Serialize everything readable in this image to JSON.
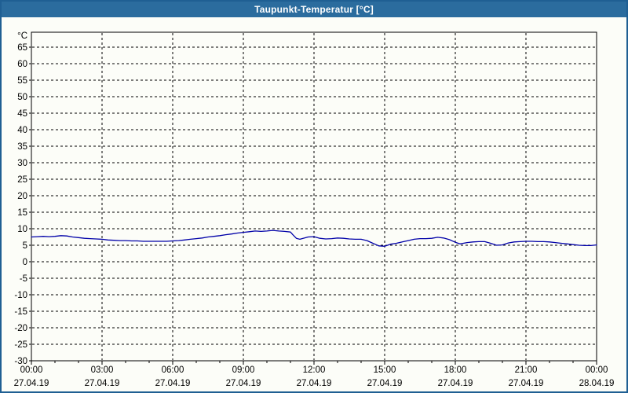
{
  "window": {
    "title": "Taupunkt-Temperatur [°C]"
  },
  "colors": {
    "titlebar_bg": "#2b6c9e",
    "titlebar_text": "#ffffff",
    "window_border": "#1f5f93",
    "background": "#fcfdf8",
    "plot_border": "#000000",
    "grid": "#000000",
    "tick_text": "#000000",
    "series_line": "#0000a8"
  },
  "chart_data": {
    "type": "line",
    "title": "Taupunkt-Temperatur [°C]",
    "ylabel": "°C",
    "unit_label": "°C",
    "ylim": [
      -30,
      65
    ],
    "y_tick_step": 5,
    "y_tick_labels": [
      "65",
      "60",
      "55",
      "50",
      "45",
      "40",
      "35",
      "30",
      "25",
      "20",
      "15",
      "10",
      "5",
      "0",
      "-5",
      "-10",
      "-15",
      "-20",
      "-25",
      "-30"
    ],
    "grid": "dashed",
    "legend_position": "none",
    "x_ticks": [
      {
        "time": "00:00",
        "date": "27.04.19"
      },
      {
        "time": "03:00",
        "date": "27.04.19"
      },
      {
        "time": "06:00",
        "date": "27.04.19"
      },
      {
        "time": "09:00",
        "date": "27.04.19"
      },
      {
        "time": "12:00",
        "date": "27.04.19"
      },
      {
        "time": "15:00",
        "date": "27.04.19"
      },
      {
        "time": "18:00",
        "date": "27.04.19"
      },
      {
        "time": "21:00",
        "date": "27.04.19"
      },
      {
        "time": "00:00",
        "date": "28.04.19"
      }
    ],
    "x_minor_tick_hours": 1,
    "series": [
      {
        "name": "Taupunkt-Temperatur",
        "color": "#0000a8",
        "points": [
          [
            0,
            7.5
          ],
          [
            0.25,
            7.6
          ],
          [
            0.5,
            7.7
          ],
          [
            0.75,
            7.6
          ],
          [
            1,
            7.7
          ],
          [
            1.25,
            7.9
          ],
          [
            1.5,
            7.8
          ],
          [
            1.75,
            7.5
          ],
          [
            2,
            7.3
          ],
          [
            2.25,
            7.1
          ],
          [
            2.5,
            7.0
          ],
          [
            2.75,
            6.9
          ],
          [
            3,
            6.8
          ],
          [
            3.25,
            6.6
          ],
          [
            3.5,
            6.5
          ],
          [
            3.75,
            6.4
          ],
          [
            4,
            6.4
          ],
          [
            4.25,
            6.3
          ],
          [
            4.5,
            6.3
          ],
          [
            4.75,
            6.2
          ],
          [
            5,
            6.2
          ],
          [
            5.25,
            6.2
          ],
          [
            5.5,
            6.2
          ],
          [
            5.75,
            6.2
          ],
          [
            6,
            6.3
          ],
          [
            6.25,
            6.4
          ],
          [
            6.5,
            6.6
          ],
          [
            6.75,
            6.8
          ],
          [
            7,
            7.0
          ],
          [
            7.25,
            7.2
          ],
          [
            7.5,
            7.5
          ],
          [
            7.75,
            7.7
          ],
          [
            8,
            7.9
          ],
          [
            8.25,
            8.2
          ],
          [
            8.5,
            8.4
          ],
          [
            8.75,
            8.7
          ],
          [
            9,
            8.9
          ],
          [
            9.25,
            9.1
          ],
          [
            9.5,
            9.3
          ],
          [
            9.75,
            9.2
          ],
          [
            10,
            9.3
          ],
          [
            10.25,
            9.5
          ],
          [
            10.5,
            9.3
          ],
          [
            10.75,
            9.2
          ],
          [
            11,
            9.0
          ],
          [
            11.1,
            8.2
          ],
          [
            11.25,
            7.1
          ],
          [
            11.4,
            6.8
          ],
          [
            11.6,
            7.2
          ],
          [
            11.75,
            7.5
          ],
          [
            12,
            7.6
          ],
          [
            12.25,
            7.1
          ],
          [
            12.5,
            6.9
          ],
          [
            12.75,
            7.0
          ],
          [
            13,
            7.2
          ],
          [
            13.25,
            7.1
          ],
          [
            13.5,
            6.9
          ],
          [
            13.75,
            6.8
          ],
          [
            14,
            6.8
          ],
          [
            14.25,
            6.4
          ],
          [
            14.5,
            5.6
          ],
          [
            14.75,
            4.8
          ],
          [
            15,
            4.7
          ],
          [
            15.25,
            5.3
          ],
          [
            15.5,
            5.6
          ],
          [
            15.75,
            6.0
          ],
          [
            16,
            6.4
          ],
          [
            16.25,
            6.8
          ],
          [
            16.5,
            7.0
          ],
          [
            16.75,
            7.0
          ],
          [
            17,
            7.1
          ],
          [
            17.25,
            7.4
          ],
          [
            17.5,
            7.2
          ],
          [
            17.75,
            6.7
          ],
          [
            18,
            5.9
          ],
          [
            18.2,
            5.4
          ],
          [
            18.5,
            5.8
          ],
          [
            18.75,
            6.0
          ],
          [
            19,
            6.1
          ],
          [
            19.25,
            6.1
          ],
          [
            19.5,
            5.6
          ],
          [
            19.75,
            5.0
          ],
          [
            20,
            5.1
          ],
          [
            20.25,
            5.7
          ],
          [
            20.5,
            6.0
          ],
          [
            20.75,
            6.1
          ],
          [
            21,
            6.2
          ],
          [
            21.25,
            6.2
          ],
          [
            21.5,
            6.1
          ],
          [
            21.75,
            6.1
          ],
          [
            22,
            6.0
          ],
          [
            22.25,
            5.8
          ],
          [
            22.5,
            5.6
          ],
          [
            22.75,
            5.4
          ],
          [
            23,
            5.2
          ],
          [
            23.25,
            5.0
          ],
          [
            23.5,
            4.9
          ],
          [
            23.75,
            4.9
          ],
          [
            24,
            5.1
          ]
        ]
      }
    ]
  }
}
